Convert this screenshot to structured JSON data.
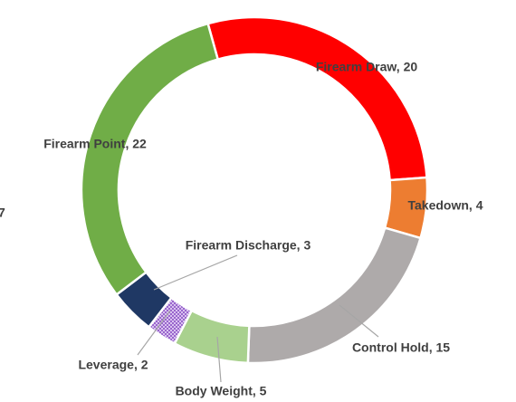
{
  "chart_data": {
    "type": "pie",
    "values": [
      20,
      4,
      15,
      5,
      2,
      3,
      22
    ],
    "value_labels": [
      "Firearm Draw, 20",
      "Takedown, 4",
      "Control Hold, 15",
      "Body Weight, 5",
      "Leverage, 2",
      "Firearm Discharge, 3",
      "Firearm Point, 22"
    ],
    "colors": [
      "#ff0000",
      "#ed7d31",
      "#aeaaaa",
      "#a9d18e",
      "#9966cc",
      "#1f3864",
      "#70ad47"
    ],
    "annotations": [
      "7"
    ]
  }
}
